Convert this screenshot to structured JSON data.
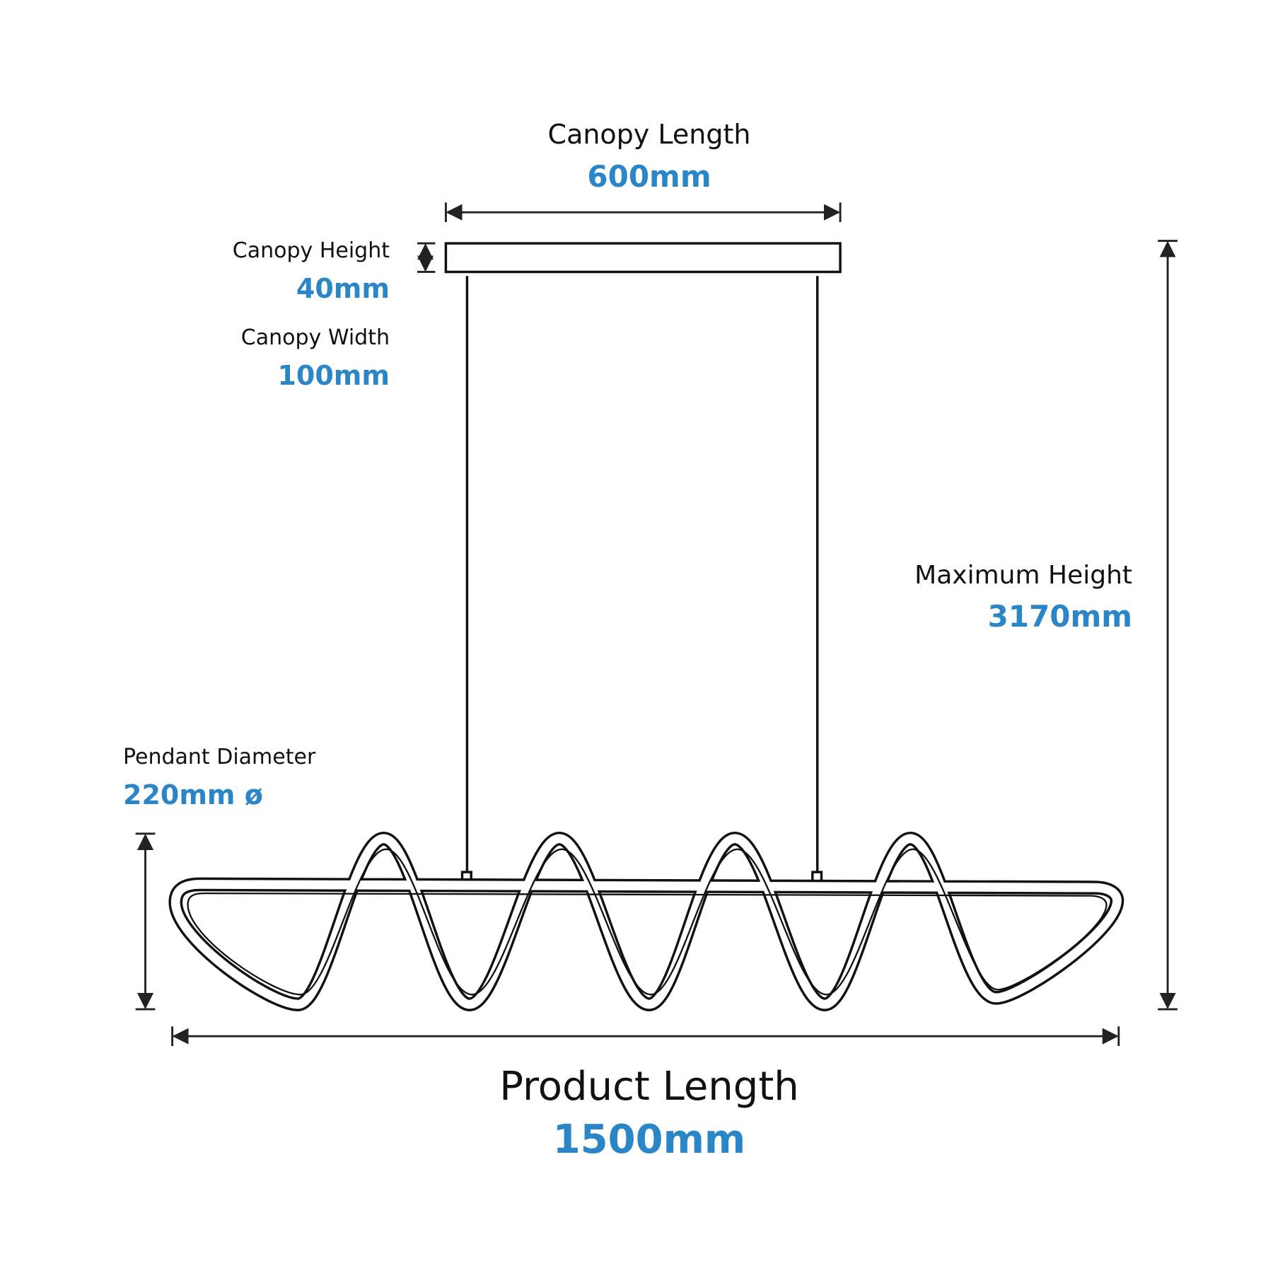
{
  "canopy_length": {
    "label": "Canopy Length",
    "value": "600mm"
  },
  "canopy_height": {
    "label": "Canopy Height",
    "value": "40mm"
  },
  "canopy_width": {
    "label": "Canopy Width",
    "value": "100mm"
  },
  "maximum_height": {
    "label": "Maximum Height",
    "value": "3170mm"
  },
  "pendant_diameter": {
    "label": "Pendant Diameter",
    "value": "220mm ø"
  },
  "product_length": {
    "label": "Product Length",
    "value": "1500mm"
  }
}
